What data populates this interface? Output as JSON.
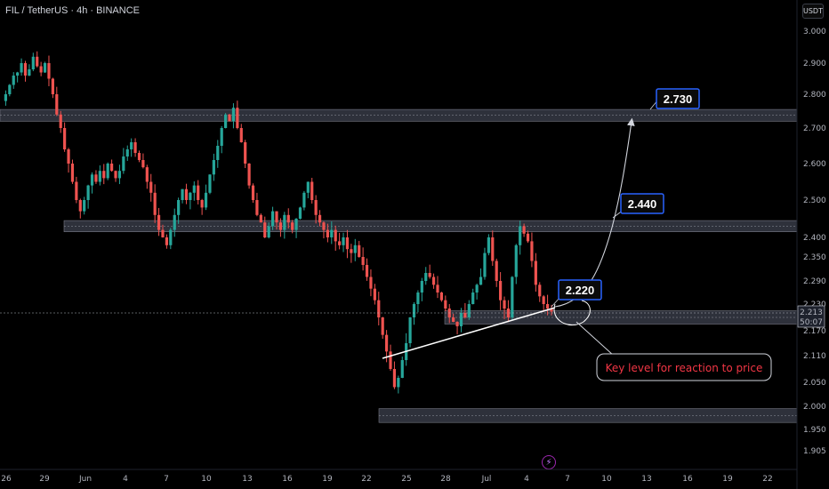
{
  "header": {
    "title": "FIL / TetherUS · 4h · BINANCE"
  },
  "toolbar": {
    "currency": "USDT"
  },
  "icons": {
    "event": "lightning-icon"
  },
  "colors": {
    "up": "#26a69a",
    "down": "#ef5350",
    "zone": "#363a45",
    "label_border": "#2962ff",
    "annotation": "#f23645"
  },
  "chart_data": {
    "type": "candlestick",
    "title": "FIL / TetherUS · 4h · BINANCE",
    "y_ticks": [
      "3.000",
      "2.900",
      "2.800",
      "2.700",
      "2.600",
      "2.500",
      "2.400",
      "2.350",
      "2.290",
      "2.230",
      "2.170",
      "2.110",
      "2.050",
      "2.000",
      "1.950",
      "1.905"
    ],
    "x_ticks": [
      "26",
      "29",
      "Jun",
      "4",
      "7",
      "10",
      "13",
      "16",
      "19",
      "22",
      "25",
      "28",
      "Jul",
      "4",
      "7",
      "10",
      "13",
      "16",
      "19",
      "22"
    ],
    "current_price": {
      "value": "2.213",
      "countdown": "50:07"
    },
    "zones": [
      {
        "from": 2.72,
        "to": 2.755
      },
      {
        "from": 2.415,
        "to": 2.445
      },
      {
        "from": 2.185,
        "to": 2.215
      },
      {
        "from": 1.965,
        "to": 1.995
      }
    ],
    "labels": [
      {
        "text": "2.730",
        "value": 2.73
      },
      {
        "text": "2.440",
        "value": 2.44
      },
      {
        "text": "2.220",
        "value": 2.22
      }
    ],
    "annotation": "Key level for reaction to price",
    "price_path": [
      2.78,
      2.8,
      2.83,
      2.86,
      2.87,
      2.9,
      2.86,
      2.88,
      2.92,
      2.89,
      2.87,
      2.9,
      2.85,
      2.8,
      2.74,
      2.7,
      2.64,
      2.6,
      2.55,
      2.5,
      2.47,
      2.5,
      2.54,
      2.57,
      2.55,
      2.58,
      2.56,
      2.6,
      2.58,
      2.56,
      2.58,
      2.62,
      2.64,
      2.66,
      2.63,
      2.61,
      2.59,
      2.55,
      2.52,
      2.46,
      2.42,
      2.4,
      2.38,
      2.42,
      2.46,
      2.5,
      2.53,
      2.5,
      2.52,
      2.54,
      2.5,
      2.48,
      2.52,
      2.57,
      2.61,
      2.65,
      2.7,
      2.74,
      2.72,
      2.76,
      2.7,
      2.66,
      2.6,
      2.54,
      2.5,
      2.46,
      2.44,
      2.4,
      2.43,
      2.47,
      2.44,
      2.42,
      2.46,
      2.44,
      2.42,
      2.45,
      2.48,
      2.52,
      2.55,
      2.5,
      2.46,
      2.44,
      2.42,
      2.4,
      2.42,
      2.39,
      2.38,
      2.4,
      2.37,
      2.36,
      2.38,
      2.35,
      2.33,
      2.3,
      2.27,
      2.24,
      2.2,
      2.16,
      2.12,
      2.08,
      2.04,
      2.06,
      2.1,
      2.14,
      2.2,
      2.23,
      2.26,
      2.29,
      2.31,
      2.3,
      2.28,
      2.26,
      2.24,
      2.22,
      2.2,
      2.19,
      2.18,
      2.21,
      2.2,
      2.23,
      2.26,
      2.28,
      2.3,
      2.36,
      2.4,
      2.34,
      2.29,
      2.24,
      2.22,
      2.2,
      2.3,
      2.38,
      2.43,
      2.41,
      2.39,
      2.34,
      2.28,
      2.25,
      2.23,
      2.22,
      2.213
    ]
  }
}
